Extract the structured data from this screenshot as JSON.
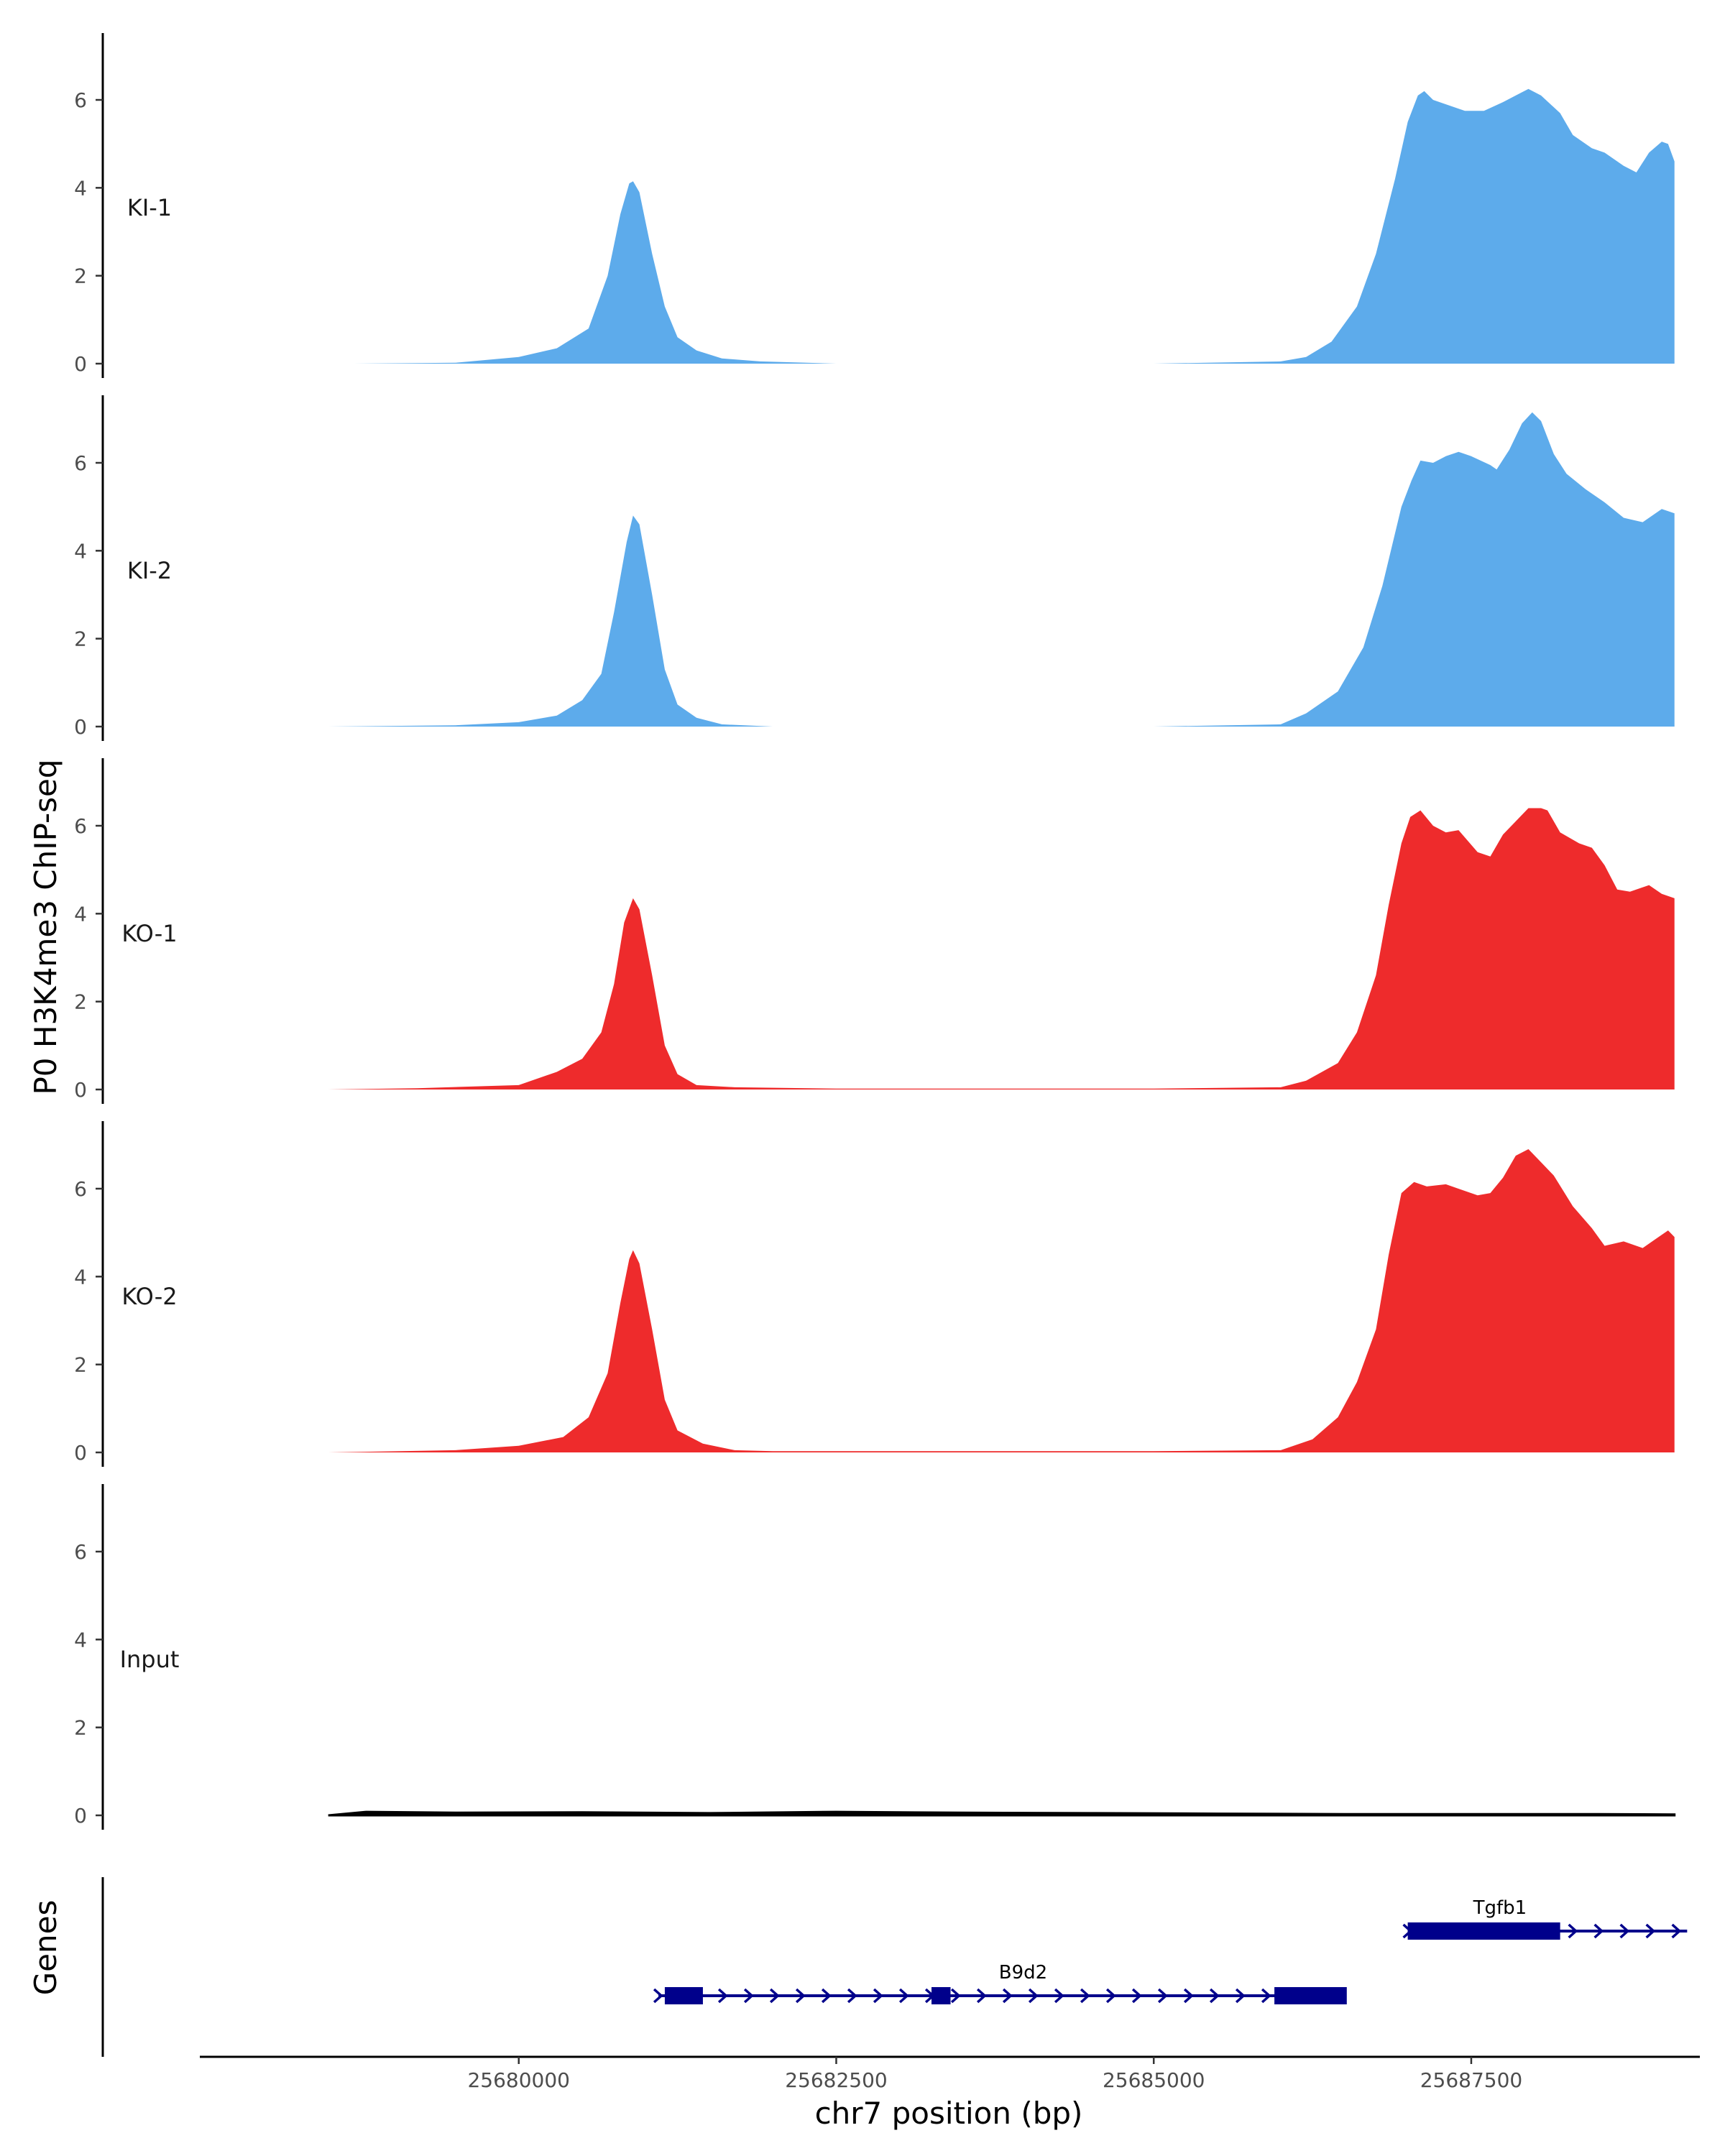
{
  "chart_data": {
    "type": "area",
    "title": "",
    "ylabel": "P0 H3K4me3 ChIP-seq",
    "xlabel": "chr7 position (bp)",
    "ylim": [
      0,
      7.5
    ],
    "y_ticks": [
      "0",
      "2",
      "4",
      "6"
    ],
    "xlim": [
      25677500,
      25689300
    ],
    "x_ticks": [
      "25680000",
      "25682500",
      "25685000",
      "25687500"
    ],
    "colors": {
      "KI": "#5dabeb",
      "KO": "#ee2b2c",
      "Input": "#000000",
      "gene": "#00008b"
    },
    "tracks": [
      {
        "name": "KI-1",
        "color": "#5dabeb",
        "points": [
          [
            25678700,
            0
          ],
          [
            25679500,
            0.02
          ],
          [
            25680000,
            0.15
          ],
          [
            25680300,
            0.35
          ],
          [
            25680550,
            0.8
          ],
          [
            25680700,
            2.0
          ],
          [
            25680800,
            3.4
          ],
          [
            25680870,
            4.1
          ],
          [
            25680900,
            4.15
          ],
          [
            25680950,
            3.9
          ],
          [
            25681050,
            2.5
          ],
          [
            25681150,
            1.3
          ],
          [
            25681250,
            0.6
          ],
          [
            25681400,
            0.3
          ],
          [
            25681600,
            0.12
          ],
          [
            25681900,
            0.05
          ],
          [
            25682500,
            0
          ],
          [
            25685000,
            0
          ],
          [
            25686000,
            0.05
          ],
          [
            25686200,
            0.15
          ],
          [
            25686400,
            0.5
          ],
          [
            25686600,
            1.3
          ],
          [
            25686750,
            2.5
          ],
          [
            25686900,
            4.2
          ],
          [
            25687000,
            5.5
          ],
          [
            25687080,
            6.1
          ],
          [
            25687130,
            6.2
          ],
          [
            25687200,
            6.0
          ],
          [
            25687300,
            5.9
          ],
          [
            25687450,
            5.75
          ],
          [
            25687600,
            5.75
          ],
          [
            25687750,
            5.95
          ],
          [
            25687850,
            6.1
          ],
          [
            25687950,
            6.25
          ],
          [
            25688050,
            6.1
          ],
          [
            25688200,
            5.7
          ],
          [
            25688300,
            5.2
          ],
          [
            25688450,
            4.9
          ],
          [
            25688550,
            4.8
          ],
          [
            25688700,
            4.5
          ],
          [
            25688800,
            4.35
          ],
          [
            25688900,
            4.8
          ],
          [
            25689000,
            5.05
          ],
          [
            25689050,
            5.0
          ],
          [
            25689100,
            4.6
          ],
          [
            25689100,
            0
          ]
        ]
      },
      {
        "name": "KI-2",
        "color": "#5dabeb",
        "points": [
          [
            25678500,
            0
          ],
          [
            25679500,
            0.03
          ],
          [
            25680000,
            0.1
          ],
          [
            25680300,
            0.25
          ],
          [
            25680500,
            0.6
          ],
          [
            25680650,
            1.2
          ],
          [
            25680750,
            2.6
          ],
          [
            25680850,
            4.2
          ],
          [
            25680900,
            4.8
          ],
          [
            25680950,
            4.6
          ],
          [
            25681050,
            3.0
          ],
          [
            25681150,
            1.3
          ],
          [
            25681250,
            0.5
          ],
          [
            25681400,
            0.2
          ],
          [
            25681600,
            0.05
          ],
          [
            25682000,
            0
          ],
          [
            25685000,
            0
          ],
          [
            25686000,
            0.05
          ],
          [
            25686200,
            0.3
          ],
          [
            25686450,
            0.8
          ],
          [
            25686650,
            1.8
          ],
          [
            25686800,
            3.2
          ],
          [
            25686950,
            5.0
          ],
          [
            25687030,
            5.6
          ],
          [
            25687100,
            6.05
          ],
          [
            25687200,
            6.0
          ],
          [
            25687300,
            6.15
          ],
          [
            25687400,
            6.25
          ],
          [
            25687500,
            6.15
          ],
          [
            25687650,
            5.95
          ],
          [
            25687700,
            5.85
          ],
          [
            25687800,
            6.3
          ],
          [
            25687900,
            6.9
          ],
          [
            25687980,
            7.15
          ],
          [
            25688050,
            6.95
          ],
          [
            25688150,
            6.2
          ],
          [
            25688250,
            5.75
          ],
          [
            25688400,
            5.4
          ],
          [
            25688550,
            5.1
          ],
          [
            25688700,
            4.75
          ],
          [
            25688850,
            4.65
          ],
          [
            25689000,
            4.95
          ],
          [
            25689100,
            4.85
          ],
          [
            25689100,
            0
          ]
        ]
      },
      {
        "name": "KO-1",
        "color": "#ee2b2c",
        "points": [
          [
            25678500,
            0
          ],
          [
            25679200,
            0.03
          ],
          [
            25680000,
            0.1
          ],
          [
            25680300,
            0.4
          ],
          [
            25680500,
            0.7
          ],
          [
            25680650,
            1.3
          ],
          [
            25680750,
            2.4
          ],
          [
            25680830,
            3.8
          ],
          [
            25680900,
            4.35
          ],
          [
            25680950,
            4.1
          ],
          [
            25681050,
            2.6
          ],
          [
            25681150,
            1.0
          ],
          [
            25681250,
            0.35
          ],
          [
            25681400,
            0.1
          ],
          [
            25681700,
            0.05
          ],
          [
            25682500,
            0.02
          ],
          [
            25685000,
            0.02
          ],
          [
            25686000,
            0.05
          ],
          [
            25686200,
            0.2
          ],
          [
            25686450,
            0.6
          ],
          [
            25686600,
            1.3
          ],
          [
            25686750,
            2.6
          ],
          [
            25686850,
            4.2
          ],
          [
            25686950,
            5.6
          ],
          [
            25687020,
            6.2
          ],
          [
            25687100,
            6.35
          ],
          [
            25687200,
            6.0
          ],
          [
            25687300,
            5.85
          ],
          [
            25687400,
            5.9
          ],
          [
            25687550,
            5.4
          ],
          [
            25687650,
            5.3
          ],
          [
            25687750,
            5.8
          ],
          [
            25687850,
            6.1
          ],
          [
            25687950,
            6.4
          ],
          [
            25688050,
            6.4
          ],
          [
            25688100,
            6.35
          ],
          [
            25688200,
            5.85
          ],
          [
            25688350,
            5.6
          ],
          [
            25688450,
            5.5
          ],
          [
            25688550,
            5.1
          ],
          [
            25688650,
            4.55
          ],
          [
            25688750,
            4.5
          ],
          [
            25688900,
            4.65
          ],
          [
            25689000,
            4.45
          ],
          [
            25689100,
            4.35
          ],
          [
            25689100,
            0
          ]
        ]
      },
      {
        "name": "KO-2",
        "color": "#ee2b2c",
        "points": [
          [
            25678500,
            0
          ],
          [
            25679500,
            0.05
          ],
          [
            25680000,
            0.15
          ],
          [
            25680350,
            0.35
          ],
          [
            25680550,
            0.8
          ],
          [
            25680700,
            1.8
          ],
          [
            25680800,
            3.4
          ],
          [
            25680870,
            4.4
          ],
          [
            25680900,
            4.6
          ],
          [
            25680950,
            4.3
          ],
          [
            25681050,
            2.8
          ],
          [
            25681150,
            1.2
          ],
          [
            25681250,
            0.5
          ],
          [
            25681450,
            0.2
          ],
          [
            25681700,
            0.05
          ],
          [
            25682000,
            0.03
          ],
          [
            25685000,
            0.03
          ],
          [
            25686000,
            0.05
          ],
          [
            25686250,
            0.3
          ],
          [
            25686450,
            0.8
          ],
          [
            25686600,
            1.6
          ],
          [
            25686750,
            2.8
          ],
          [
            25686850,
            4.5
          ],
          [
            25686950,
            5.9
          ],
          [
            25687050,
            6.15
          ],
          [
            25687150,
            6.05
          ],
          [
            25687300,
            6.1
          ],
          [
            25687450,
            5.95
          ],
          [
            25687550,
            5.85
          ],
          [
            25687650,
            5.9
          ],
          [
            25687750,
            6.25
          ],
          [
            25687850,
            6.75
          ],
          [
            25687950,
            6.9
          ],
          [
            25688050,
            6.6
          ],
          [
            25688150,
            6.3
          ],
          [
            25688300,
            5.6
          ],
          [
            25688450,
            5.1
          ],
          [
            25688550,
            4.7
          ],
          [
            25688700,
            4.8
          ],
          [
            25688850,
            4.65
          ],
          [
            25688950,
            4.85
          ],
          [
            25689050,
            5.05
          ],
          [
            25689100,
            4.9
          ],
          [
            25689100,
            0
          ]
        ]
      },
      {
        "name": "Input",
        "color": "#000000",
        "points": [
          [
            25678500,
            0
          ],
          [
            25678800,
            0.08
          ],
          [
            25679500,
            0.06
          ],
          [
            25680500,
            0.07
          ],
          [
            25681500,
            0.05
          ],
          [
            25682500,
            0.08
          ],
          [
            25683500,
            0.06
          ],
          [
            25684500,
            0.05
          ],
          [
            25685500,
            0.04
          ],
          [
            25686500,
            0.03
          ],
          [
            25687500,
            0.03
          ],
          [
            25688500,
            0.03
          ],
          [
            25689100,
            0.02
          ],
          [
            25689100,
            0
          ]
        ]
      }
    ],
    "genes_track": {
      "label": "Genes",
      "genes": [
        {
          "name": "Tgfb1",
          "strand": "+",
          "row": 1,
          "start": 25687000,
          "end": 25689200,
          "exons": [
            [
              25687000,
              25688200
            ]
          ],
          "arrows_start": 25688200
        },
        {
          "name": "B9d2",
          "strand": "+",
          "row": 0,
          "start": 25681100,
          "end": 25686500,
          "exons": [
            [
              25681150,
              25681450
            ],
            [
              25683250,
              25683400
            ],
            [
              25685950,
              25686520
            ]
          ],
          "arrows_start": 25681100
        }
      ]
    }
  }
}
